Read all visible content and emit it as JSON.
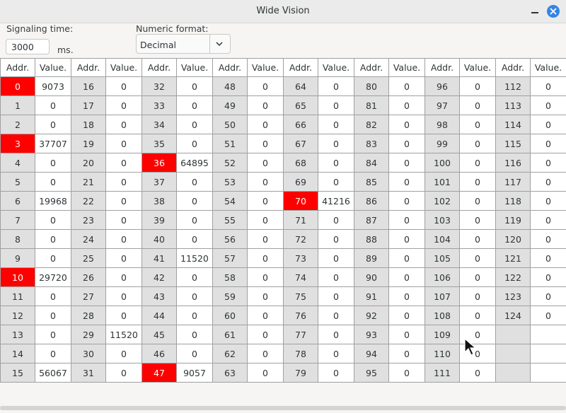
{
  "window": {
    "title": "Wide Vision"
  },
  "controls": {
    "signaling_label": "Signaling time:",
    "signaling_value": "3000",
    "signaling_unit": "ms.",
    "format_label": "Numeric format:",
    "format_value": "Decimal"
  },
  "table": {
    "headers": [
      "Addr.",
      "Value.",
      "Addr.",
      "Value.",
      "Addr.",
      "Value.",
      "Addr.",
      "Value.",
      "Addr.",
      "Value.",
      "Addr.",
      "Value.",
      "Addr.",
      "Value.",
      "Addr.",
      "Value."
    ],
    "highlight_color": "#ff0000",
    "rows": [
      [
        {
          "a": "0",
          "v": "9073",
          "h": true
        },
        {
          "a": "16",
          "v": "0"
        },
        {
          "a": "32",
          "v": "0"
        },
        {
          "a": "48",
          "v": "0"
        },
        {
          "a": "64",
          "v": "0"
        },
        {
          "a": "80",
          "v": "0"
        },
        {
          "a": "96",
          "v": "0"
        },
        {
          "a": "112",
          "v": "0"
        }
      ],
      [
        {
          "a": "1",
          "v": "0"
        },
        {
          "a": "17",
          "v": "0"
        },
        {
          "a": "33",
          "v": "0"
        },
        {
          "a": "49",
          "v": "0"
        },
        {
          "a": "65",
          "v": "0"
        },
        {
          "a": "81",
          "v": "0"
        },
        {
          "a": "97",
          "v": "0"
        },
        {
          "a": "113",
          "v": "0"
        }
      ],
      [
        {
          "a": "2",
          "v": "0"
        },
        {
          "a": "18",
          "v": "0"
        },
        {
          "a": "34",
          "v": "0"
        },
        {
          "a": "50",
          "v": "0"
        },
        {
          "a": "66",
          "v": "0"
        },
        {
          "a": "82",
          "v": "0"
        },
        {
          "a": "98",
          "v": "0"
        },
        {
          "a": "114",
          "v": "0"
        }
      ],
      [
        {
          "a": "3",
          "v": "37707",
          "h": true
        },
        {
          "a": "19",
          "v": "0"
        },
        {
          "a": "35",
          "v": "0"
        },
        {
          "a": "51",
          "v": "0"
        },
        {
          "a": "67",
          "v": "0"
        },
        {
          "a": "83",
          "v": "0"
        },
        {
          "a": "99",
          "v": "0"
        },
        {
          "a": "115",
          "v": "0"
        }
      ],
      [
        {
          "a": "4",
          "v": "0"
        },
        {
          "a": "20",
          "v": "0"
        },
        {
          "a": "36",
          "v": "64895",
          "h": true
        },
        {
          "a": "52",
          "v": "0"
        },
        {
          "a": "68",
          "v": "0"
        },
        {
          "a": "84",
          "v": "0"
        },
        {
          "a": "100",
          "v": "0"
        },
        {
          "a": "116",
          "v": "0"
        }
      ],
      [
        {
          "a": "5",
          "v": "0"
        },
        {
          "a": "21",
          "v": "0"
        },
        {
          "a": "37",
          "v": "0"
        },
        {
          "a": "53",
          "v": "0"
        },
        {
          "a": "69",
          "v": "0"
        },
        {
          "a": "85",
          "v": "0"
        },
        {
          "a": "101",
          "v": "0"
        },
        {
          "a": "117",
          "v": "0"
        }
      ],
      [
        {
          "a": "6",
          "v": "19968"
        },
        {
          "a": "22",
          "v": "0"
        },
        {
          "a": "38",
          "v": "0"
        },
        {
          "a": "54",
          "v": "0"
        },
        {
          "a": "70",
          "v": "41216",
          "h": true
        },
        {
          "a": "86",
          "v": "0"
        },
        {
          "a": "102",
          "v": "0"
        },
        {
          "a": "118",
          "v": "0"
        }
      ],
      [
        {
          "a": "7",
          "v": "0"
        },
        {
          "a": "23",
          "v": "0"
        },
        {
          "a": "39",
          "v": "0"
        },
        {
          "a": "55",
          "v": "0"
        },
        {
          "a": "71",
          "v": "0"
        },
        {
          "a": "87",
          "v": "0"
        },
        {
          "a": "103",
          "v": "0"
        },
        {
          "a": "119",
          "v": "0"
        }
      ],
      [
        {
          "a": "8",
          "v": "0"
        },
        {
          "a": "24",
          "v": "0"
        },
        {
          "a": "40",
          "v": "0"
        },
        {
          "a": "56",
          "v": "0"
        },
        {
          "a": "72",
          "v": "0"
        },
        {
          "a": "88",
          "v": "0"
        },
        {
          "a": "104",
          "v": "0"
        },
        {
          "a": "120",
          "v": "0"
        }
      ],
      [
        {
          "a": "9",
          "v": "0"
        },
        {
          "a": "25",
          "v": "0"
        },
        {
          "a": "41",
          "v": "11520"
        },
        {
          "a": "57",
          "v": "0"
        },
        {
          "a": "73",
          "v": "0"
        },
        {
          "a": "89",
          "v": "0"
        },
        {
          "a": "105",
          "v": "0"
        },
        {
          "a": "121",
          "v": "0"
        }
      ],
      [
        {
          "a": "10",
          "v": "29720",
          "h": true
        },
        {
          "a": "26",
          "v": "0"
        },
        {
          "a": "42",
          "v": "0"
        },
        {
          "a": "58",
          "v": "0"
        },
        {
          "a": "74",
          "v": "0"
        },
        {
          "a": "90",
          "v": "0"
        },
        {
          "a": "106",
          "v": "0"
        },
        {
          "a": "122",
          "v": "0"
        }
      ],
      [
        {
          "a": "11",
          "v": "0"
        },
        {
          "a": "27",
          "v": "0"
        },
        {
          "a": "43",
          "v": "0"
        },
        {
          "a": "59",
          "v": "0"
        },
        {
          "a": "75",
          "v": "0"
        },
        {
          "a": "91",
          "v": "0"
        },
        {
          "a": "107",
          "v": "0"
        },
        {
          "a": "123",
          "v": "0"
        }
      ],
      [
        {
          "a": "12",
          "v": "0"
        },
        {
          "a": "28",
          "v": "0"
        },
        {
          "a": "44",
          "v": "0"
        },
        {
          "a": "60",
          "v": "0"
        },
        {
          "a": "76",
          "v": "0"
        },
        {
          "a": "92",
          "v": "0"
        },
        {
          "a": "108",
          "v": "0"
        },
        {
          "a": "124",
          "v": "0"
        }
      ],
      [
        {
          "a": "13",
          "v": "0"
        },
        {
          "a": "29",
          "v": "11520"
        },
        {
          "a": "45",
          "v": "0"
        },
        {
          "a": "61",
          "v": "0"
        },
        {
          "a": "77",
          "v": "0"
        },
        {
          "a": "93",
          "v": "0"
        },
        {
          "a": "109",
          "v": "0"
        },
        {
          "a": "",
          "v": ""
        }
      ],
      [
        {
          "a": "14",
          "v": "0"
        },
        {
          "a": "30",
          "v": "0"
        },
        {
          "a": "46",
          "v": "0"
        },
        {
          "a": "62",
          "v": "0"
        },
        {
          "a": "78",
          "v": "0"
        },
        {
          "a": "94",
          "v": "0"
        },
        {
          "a": "110",
          "v": "0"
        },
        {
          "a": "",
          "v": ""
        }
      ],
      [
        {
          "a": "15",
          "v": "56067"
        },
        {
          "a": "31",
          "v": "0"
        },
        {
          "a": "47",
          "v": "9057",
          "h": true
        },
        {
          "a": "63",
          "v": "0"
        },
        {
          "a": "79",
          "v": "0"
        },
        {
          "a": "95",
          "v": "0"
        },
        {
          "a": "111",
          "v": "0"
        },
        {
          "a": "",
          "v": ""
        }
      ]
    ]
  }
}
